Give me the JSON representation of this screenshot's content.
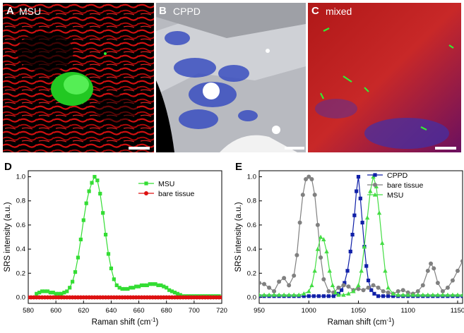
{
  "panels": {
    "A": {
      "letter": "A",
      "title": "MSU"
    },
    "B": {
      "letter": "B",
      "title": "CPPD"
    },
    "C": {
      "letter": "C",
      "title": "mixed"
    },
    "D": {
      "letter": "D"
    },
    "E": {
      "letter": "E"
    }
  },
  "colors": {
    "msu": "#33dd33",
    "bare": "#dd1111",
    "cppd": "#1020a8",
    "bare_e": "#808080",
    "msu_e": "#44dd44"
  },
  "chart_data": [
    {
      "type": "line",
      "id": "D",
      "xlabel": "Raman shift (cm-1)",
      "ylabel": "SRS intensity (a.u.)",
      "xlim": [
        580,
        720
      ],
      "ylim": [
        -0.05,
        1.05
      ],
      "xticks": [
        580,
        600,
        620,
        640,
        660,
        680,
        700,
        720
      ],
      "yticks": [
        0.0,
        0.2,
        0.4,
        0.6,
        0.8,
        1.0
      ],
      "legend": "top-right",
      "series": [
        {
          "name": "MSU",
          "marker": "square",
          "x": [
            586,
            588,
            590,
            592,
            594,
            596,
            598,
            600,
            602,
            604,
            606,
            608,
            610,
            612,
            614,
            616,
            618,
            620,
            622,
            624,
            626,
            628,
            630,
            632,
            634,
            636,
            638,
            640,
            642,
            644,
            646,
            648,
            650,
            652,
            654,
            656,
            658,
            660,
            662,
            664,
            666,
            668,
            670,
            672,
            674,
            676,
            678,
            680,
            682,
            684,
            686,
            688,
            690,
            692,
            694,
            696,
            698,
            700,
            702,
            704,
            706,
            708,
            710,
            712,
            714,
            716,
            718
          ],
          "y": [
            0.03,
            0.04,
            0.05,
            0.05,
            0.05,
            0.04,
            0.04,
            0.03,
            0.03,
            0.03,
            0.04,
            0.05,
            0.08,
            0.13,
            0.21,
            0.33,
            0.48,
            0.64,
            0.78,
            0.88,
            0.95,
            1.0,
            0.97,
            0.86,
            0.7,
            0.52,
            0.36,
            0.24,
            0.15,
            0.1,
            0.08,
            0.07,
            0.07,
            0.07,
            0.08,
            0.08,
            0.09,
            0.09,
            0.1,
            0.1,
            0.1,
            0.11,
            0.11,
            0.11,
            0.1,
            0.1,
            0.09,
            0.08,
            0.06,
            0.05,
            0.04,
            0.03,
            0.02,
            0.01,
            0.01,
            0.01,
            0.01,
            0.01,
            0.01,
            0.01,
            0.01,
            0.01,
            0.01,
            0.01,
            0.01,
            0.01,
            0.01
          ]
        },
        {
          "name": "bare tissue",
          "marker": "circle",
          "x": [
            580,
            582,
            584,
            586,
            588,
            590,
            592,
            594,
            596,
            598,
            600,
            602,
            604,
            606,
            608,
            610,
            612,
            614,
            616,
            618,
            620,
            622,
            624,
            626,
            628,
            630,
            632,
            634,
            636,
            638,
            640,
            642,
            644,
            646,
            648,
            650,
            652,
            654,
            656,
            658,
            660,
            662,
            664,
            666,
            668,
            670,
            672,
            674,
            676,
            678,
            680,
            682,
            684,
            686,
            688,
            690,
            692,
            694,
            696,
            698,
            700,
            702,
            704,
            706,
            708,
            710,
            712,
            714,
            716,
            718,
            720
          ],
          "y": [
            0.0,
            0.0,
            0.0,
            0.0,
            0.0,
            0.0,
            0.0,
            0.0,
            0.0,
            0.0,
            0.0,
            0.0,
            0.0,
            0.0,
            0.0,
            0.0,
            0.0,
            0.0,
            0.0,
            0.0,
            0.0,
            0.0,
            0.0,
            0.0,
            0.0,
            0.0,
            0.0,
            0.0,
            0.0,
            0.0,
            0.0,
            0.0,
            0.0,
            0.0,
            0.0,
            0.0,
            0.0,
            0.0,
            0.0,
            0.0,
            0.0,
            0.0,
            0.0,
            0.0,
            0.0,
            0.0,
            0.0,
            0.0,
            0.0,
            0.0,
            0.0,
            0.0,
            0.0,
            0.0,
            0.0,
            0.0,
            0.0,
            0.0,
            0.0,
            0.0,
            0.0,
            0.0,
            0.0,
            0.0,
            0.0,
            0.0,
            0.0,
            0.0,
            0.0,
            0.0,
            0.0
          ]
        }
      ]
    },
    {
      "type": "line",
      "id": "E",
      "xlabel": "Raman shift (cm-1)",
      "ylabel": "SRS intensity (a.u.)",
      "xlim": [
        950,
        1155
      ],
      "ylim": [
        -0.05,
        1.05
      ],
      "xticks": [
        950,
        1000,
        1050,
        1100,
        1150
      ],
      "yticks": [
        0.0,
        0.2,
        0.4,
        0.6,
        0.8,
        1.0
      ],
      "legend": "top-right",
      "series": [
        {
          "name": "CPPD",
          "marker": "square",
          "x": [
            950,
            955,
            960,
            965,
            970,
            975,
            980,
            985,
            990,
            995,
            1000,
            1005,
            1010,
            1015,
            1020,
            1025,
            1030,
            1033,
            1036,
            1039,
            1042,
            1044,
            1046,
            1048,
            1050,
            1052,
            1054,
            1056,
            1058,
            1060,
            1063,
            1066,
            1070,
            1075,
            1080,
            1085,
            1090,
            1095,
            1100,
            1105,
            1110,
            1115,
            1120,
            1125,
            1130,
            1135,
            1140,
            1145,
            1150,
            1155
          ],
          "y": [
            0.01,
            0.01,
            0.01,
            0.01,
            0.01,
            0.01,
            0.01,
            0.01,
            0.01,
            0.01,
            0.01,
            0.01,
            0.01,
            0.01,
            0.01,
            0.01,
            0.03,
            0.06,
            0.12,
            0.22,
            0.38,
            0.52,
            0.68,
            0.88,
            1.0,
            0.82,
            0.62,
            0.42,
            0.26,
            0.14,
            0.06,
            0.03,
            0.01,
            0.01,
            0.01,
            0.01,
            0.01,
            0.01,
            0.01,
            0.01,
            0.01,
            0.01,
            0.01,
            0.01,
            0.01,
            0.01,
            0.01,
            0.01,
            0.01,
            0.01
          ]
        },
        {
          "name": "bare tissue",
          "marker": "circle",
          "x": [
            950,
            955,
            960,
            965,
            970,
            975,
            980,
            985,
            988,
            991,
            994,
            997,
            1000,
            1003,
            1006,
            1009,
            1012,
            1015,
            1020,
            1025,
            1030,
            1035,
            1040,
            1045,
            1050,
            1055,
            1060,
            1065,
            1070,
            1075,
            1080,
            1085,
            1090,
            1095,
            1100,
            1105,
            1110,
            1115,
            1120,
            1123,
            1126,
            1130,
            1135,
            1140,
            1145,
            1150,
            1155
          ],
          "y": [
            0.12,
            0.11,
            0.08,
            0.05,
            0.13,
            0.16,
            0.1,
            0.18,
            0.35,
            0.62,
            0.85,
            0.98,
            1.0,
            0.98,
            0.85,
            0.6,
            0.33,
            0.15,
            0.05,
            0.04,
            0.08,
            0.1,
            0.09,
            0.06,
            0.07,
            0.06,
            0.08,
            0.1,
            0.08,
            0.05,
            0.04,
            0.03,
            0.05,
            0.06,
            0.04,
            0.03,
            0.05,
            0.1,
            0.22,
            0.28,
            0.24,
            0.12,
            0.05,
            0.08,
            0.14,
            0.22,
            0.3
          ]
        },
        {
          "name": "MSU",
          "marker": "triangle",
          "x": [
            950,
            955,
            960,
            965,
            970,
            975,
            980,
            985,
            990,
            995,
            1000,
            1003,
            1006,
            1009,
            1012,
            1015,
            1018,
            1021,
            1024,
            1027,
            1030,
            1035,
            1040,
            1045,
            1050,
            1053,
            1056,
            1059,
            1062,
            1065,
            1068,
            1071,
            1074,
            1077,
            1080,
            1085,
            1090,
            1095,
            1100,
            1105,
            1110,
            1115,
            1120,
            1125,
            1130,
            1135,
            1140,
            1145,
            1150,
            1155
          ],
          "y": [
            0.02,
            0.02,
            0.02,
            0.02,
            0.02,
            0.02,
            0.02,
            0.02,
            0.02,
            0.03,
            0.05,
            0.1,
            0.22,
            0.4,
            0.5,
            0.48,
            0.38,
            0.22,
            0.1,
            0.04,
            0.02,
            0.02,
            0.03,
            0.05,
            0.1,
            0.22,
            0.42,
            0.66,
            0.88,
            1.0,
            0.92,
            0.7,
            0.45,
            0.22,
            0.08,
            0.03,
            0.02,
            0.02,
            0.02,
            0.02,
            0.02,
            0.02,
            0.02,
            0.02,
            0.02,
            0.02,
            0.02,
            0.02,
            0.02,
            0.02
          ]
        }
      ]
    }
  ]
}
